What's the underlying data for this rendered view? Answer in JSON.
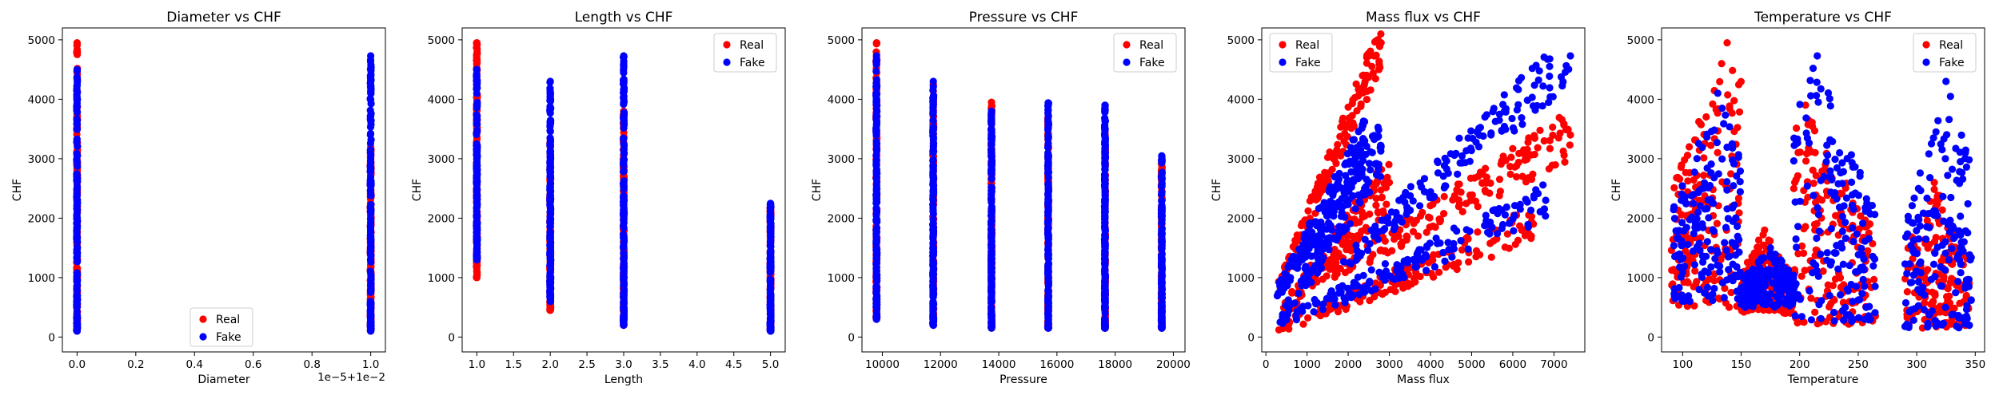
{
  "colors": {
    "real": "#ff0000",
    "fake": "#0000ff"
  },
  "chart_data": [
    {
      "type": "scatter",
      "title": "Diameter vs CHF",
      "xlabel": "Diameter",
      "ylabel": "CHF",
      "xlim": [
        -0.05,
        1.05
      ],
      "ylim": [
        -250,
        5200
      ],
      "xticks": [
        0.0,
        0.2,
        0.4,
        0.6,
        0.8,
        1.0
      ],
      "xtick_labels": [
        "0.0",
        "0.2",
        "0.4",
        "0.6",
        "0.8",
        "1.0"
      ],
      "yticks": [
        0,
        1000,
        2000,
        3000,
        4000,
        5000
      ],
      "offset_text": "1e−5+1e−2",
      "legend": "lower center",
      "series": [
        {
          "name": "Real",
          "color": "#ff0000",
          "columns": [
            {
              "x": 0.0,
              "ymin": 100,
              "ymax": 4950
            },
            {
              "x": 1.0,
              "ymin": 100,
              "ymax": 3200
            }
          ]
        },
        {
          "name": "Fake",
          "color": "#0000ff",
          "columns": [
            {
              "x": 0.0,
              "ymin": 100,
              "ymax": 4500
            },
            {
              "x": 1.0,
              "ymin": 100,
              "ymax": 4730
            }
          ]
        }
      ]
    },
    {
      "type": "scatter",
      "title": "Length vs CHF",
      "xlabel": "Length",
      "ylabel": "CHF",
      "xlim": [
        0.8,
        5.2
      ],
      "ylim": [
        -250,
        5200
      ],
      "xticks": [
        1.0,
        1.5,
        2.0,
        2.5,
        3.0,
        3.5,
        4.0,
        4.5,
        5.0
      ],
      "xtick_labels": [
        "1.0",
        "1.5",
        "2.0",
        "2.5",
        "3.0",
        "3.5",
        "4.0",
        "4.5",
        "5.0"
      ],
      "yticks": [
        0,
        1000,
        2000,
        3000,
        4000,
        5000
      ],
      "legend": "upper right",
      "series": [
        {
          "name": "Real",
          "color": "#ff0000",
          "columns": [
            {
              "x": 1.0,
              "ymin": 1000,
              "ymax": 4950
            },
            {
              "x": 2.0,
              "ymin": 450,
              "ymax": 3300
            },
            {
              "x": 3.0,
              "ymin": 200,
              "ymax": 3800
            },
            {
              "x": 5.0,
              "ymin": 100,
              "ymax": 2200
            }
          ]
        },
        {
          "name": "Fake",
          "color": "#0000ff",
          "columns": [
            {
              "x": 1.0,
              "ymin": 1300,
              "ymax": 4500
            },
            {
              "x": 2.0,
              "ymin": 600,
              "ymax": 4300
            },
            {
              "x": 3.0,
              "ymin": 200,
              "ymax": 4730
            },
            {
              "x": 5.0,
              "ymin": 100,
              "ymax": 2250
            }
          ]
        }
      ]
    },
    {
      "type": "scatter",
      "title": "Pressure vs CHF",
      "xlabel": "Pressure",
      "ylabel": "CHF",
      "xlim": [
        9300,
        20400
      ],
      "ylim": [
        -250,
        5200
      ],
      "xticks": [
        10000,
        12000,
        14000,
        16000,
        18000,
        20000
      ],
      "xtick_labels": [
        "10000",
        "12000",
        "14000",
        "16000",
        "18000",
        "20000"
      ],
      "yticks": [
        0,
        1000,
        2000,
        3000,
        4000,
        5000
      ],
      "legend": "upper right",
      "series": [
        {
          "name": "Real",
          "color": "#ff0000",
          "columns": [
            {
              "x": 9800,
              "ymin": 300,
              "ymax": 4950
            },
            {
              "x": 11750,
              "ymin": 200,
              "ymax": 4250
            },
            {
              "x": 13750,
              "ymin": 150,
              "ymax": 3950
            },
            {
              "x": 15700,
              "ymin": 150,
              "ymax": 3700
            },
            {
              "x": 17650,
              "ymin": 150,
              "ymax": 3480
            },
            {
              "x": 19600,
              "ymin": 150,
              "ymax": 2950
            }
          ]
        },
        {
          "name": "Fake",
          "color": "#0000ff",
          "columns": [
            {
              "x": 9800,
              "ymin": 300,
              "ymax": 4730
            },
            {
              "x": 11750,
              "ymin": 200,
              "ymax": 4300
            },
            {
              "x": 13750,
              "ymin": 150,
              "ymax": 3800
            },
            {
              "x": 15700,
              "ymin": 150,
              "ymax": 3940
            },
            {
              "x": 17650,
              "ymin": 150,
              "ymax": 3900
            },
            {
              "x": 19600,
              "ymin": 150,
              "ymax": 3050
            }
          ]
        }
      ]
    },
    {
      "type": "scatter",
      "title": "Mass flux vs CHF",
      "xlabel": "Mass flux",
      "ylabel": "CHF",
      "xlim": [
        -100,
        7750
      ],
      "ylim": [
        -250,
        5200
      ],
      "xticks": [
        0,
        1000,
        2000,
        3000,
        4000,
        5000,
        6000,
        7000
      ],
      "xtick_labels": [
        "0",
        "1000",
        "2000",
        "3000",
        "4000",
        "5000",
        "6000",
        "7000"
      ],
      "yticks": [
        0,
        1000,
        2000,
        3000,
        4000,
        5000
      ],
      "legend": "upper left",
      "series": [
        {
          "name": "Real",
          "color": "#ff0000",
          "bands": [
            {
              "x0": 300,
              "x1": 2800,
              "y0a": 800,
              "y0b": 4950,
              "width": 600
            },
            {
              "x0": 300,
              "x1": 6500,
              "y0a": 150,
              "y0b": 1900,
              "width": 450
            },
            {
              "x0": 1500,
              "x1": 7400,
              "y0a": 1000,
              "y0b": 3400,
              "width": 600
            },
            {
              "x0": 400,
              "x1": 3000,
              "y0a": 400,
              "y0b": 2600,
              "width": 700
            }
          ]
        },
        {
          "name": "Fake",
          "color": "#0000ff",
          "bands": [
            {
              "x0": 250,
              "x1": 2400,
              "y0a": 700,
              "y0b": 3300,
              "width": 650
            },
            {
              "x0": 300,
              "x1": 6800,
              "y0a": 200,
              "y0b": 2300,
              "width": 550
            },
            {
              "x0": 1800,
              "x1": 7400,
              "y0a": 1200,
              "y0b": 4730,
              "width": 700
            },
            {
              "x0": 400,
              "x1": 2800,
              "y0a": 300,
              "y0b": 3200,
              "width": 700
            }
          ]
        }
      ]
    },
    {
      "type": "scatter",
      "title": "Temperature vs CHF",
      "xlabel": "Temperature",
      "ylabel": "CHF",
      "xlim": [
        82,
        358
      ],
      "ylim": [
        -250,
        5200
      ],
      "xticks": [
        100,
        150,
        200,
        250,
        300,
        350
      ],
      "xtick_labels": [
        "100",
        "150",
        "200",
        "250",
        "300",
        "350"
      ],
      "yticks": [
        0,
        1000,
        2000,
        3000,
        4000,
        5000
      ],
      "legend": "upper right",
      "series": [
        {
          "name": "Real",
          "color": "#ff0000",
          "clusters": [
            {
              "x0": 90,
              "x1": 150,
              "peak": 138,
              "ymin": 500,
              "ymax": 4950
            },
            {
              "x0": 150,
              "x1": 195,
              "peak": 170,
              "ymin": 400,
              "ymax": 1800
            },
            {
              "x0": 195,
              "x1": 265,
              "peak": 205,
              "ymin": 200,
              "ymax": 3900
            },
            {
              "x0": 290,
              "x1": 345,
              "peak": 315,
              "ymin": 150,
              "ymax": 2600
            }
          ]
        },
        {
          "name": "Fake",
          "color": "#0000ff",
          "clusters": [
            {
              "x0": 92,
              "x1": 150,
              "peak": 130,
              "ymin": 600,
              "ymax": 4100
            },
            {
              "x0": 150,
              "x1": 195,
              "peak": 175,
              "ymin": 500,
              "ymax": 1500
            },
            {
              "x0": 195,
              "x1": 265,
              "peak": 215,
              "ymin": 250,
              "ymax": 4730
            },
            {
              "x0": 290,
              "x1": 347,
              "peak": 325,
              "ymin": 150,
              "ymax": 4300
            }
          ]
        }
      ]
    }
  ]
}
